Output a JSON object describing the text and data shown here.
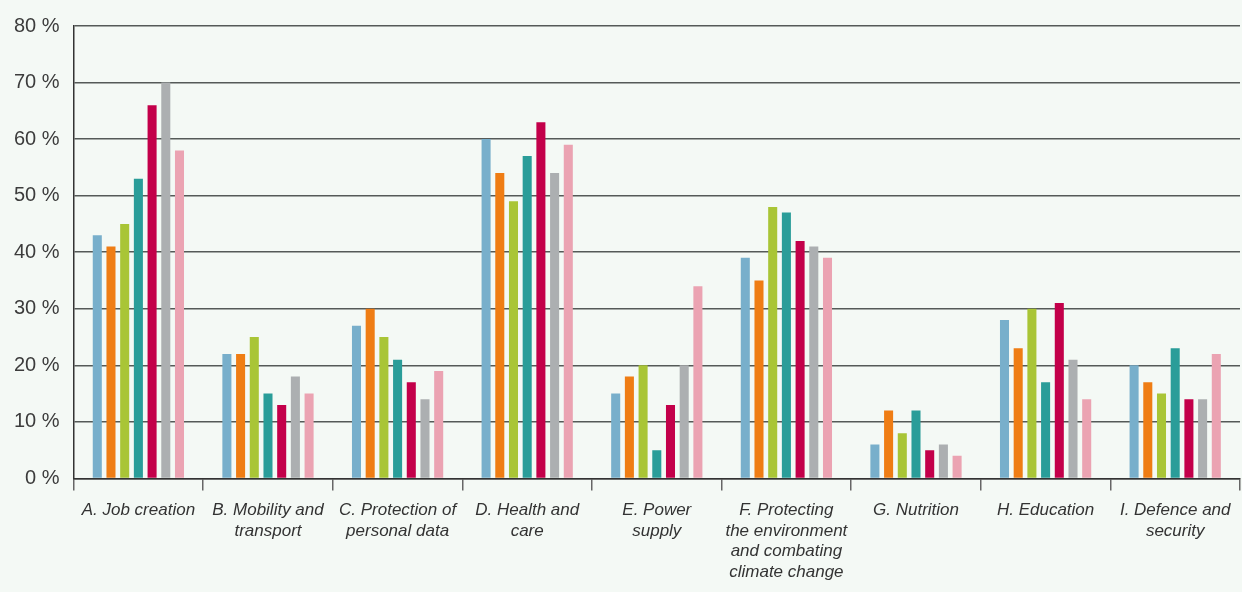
{
  "chart_data": {
    "type": "bar",
    "categories": [
      "A. Job creation",
      "B. Mobility and transport",
      "C. Protection of personal data",
      "D. Health and care",
      "E. Power supply",
      "F. Protecting the environment and combating climate change",
      "G. Nutrition",
      "H. Education",
      "I. Defence and security"
    ],
    "series": [
      {
        "color": "#78afcb",
        "values": [
          43,
          22,
          27,
          60,
          15,
          39,
          6,
          28,
          20
        ]
      },
      {
        "color": "#ef7d14",
        "values": [
          41,
          22,
          30,
          54,
          18,
          35,
          12,
          23,
          17
        ]
      },
      {
        "color": "#a9c536",
        "values": [
          45,
          25,
          25,
          49,
          20,
          48,
          8,
          30,
          15
        ]
      },
      {
        "color": "#2a9d99",
        "values": [
          53,
          15,
          21,
          57,
          5,
          47,
          12,
          17,
          23
        ]
      },
      {
        "color": "#c3004a",
        "values": [
          66,
          13,
          17,
          63,
          13,
          42,
          5,
          31,
          14
        ]
      },
      {
        "color": "#acafb1",
        "values": [
          70,
          18,
          14,
          54,
          20,
          41,
          6,
          21,
          14
        ]
      },
      {
        "color": "#eba3b2",
        "values": [
          58,
          15,
          19,
          59,
          34,
          39,
          4,
          14,
          22
        ]
      }
    ],
    "ylim": [
      0,
      80
    ],
    "yticks": [
      {
        "value": 0,
        "label": "0 %"
      },
      {
        "value": 10,
        "label": "10 %"
      },
      {
        "value": 20,
        "label": "20 %"
      },
      {
        "value": 30,
        "label": "30 %"
      },
      {
        "value": 40,
        "label": "40 %"
      },
      {
        "value": 50,
        "label": "50 %"
      },
      {
        "value": 60,
        "label": "60 %"
      },
      {
        "value": 70,
        "label": "70 %"
      },
      {
        "value": 80,
        "label": "80 %"
      }
    ],
    "grid": "y",
    "legend": false
  }
}
